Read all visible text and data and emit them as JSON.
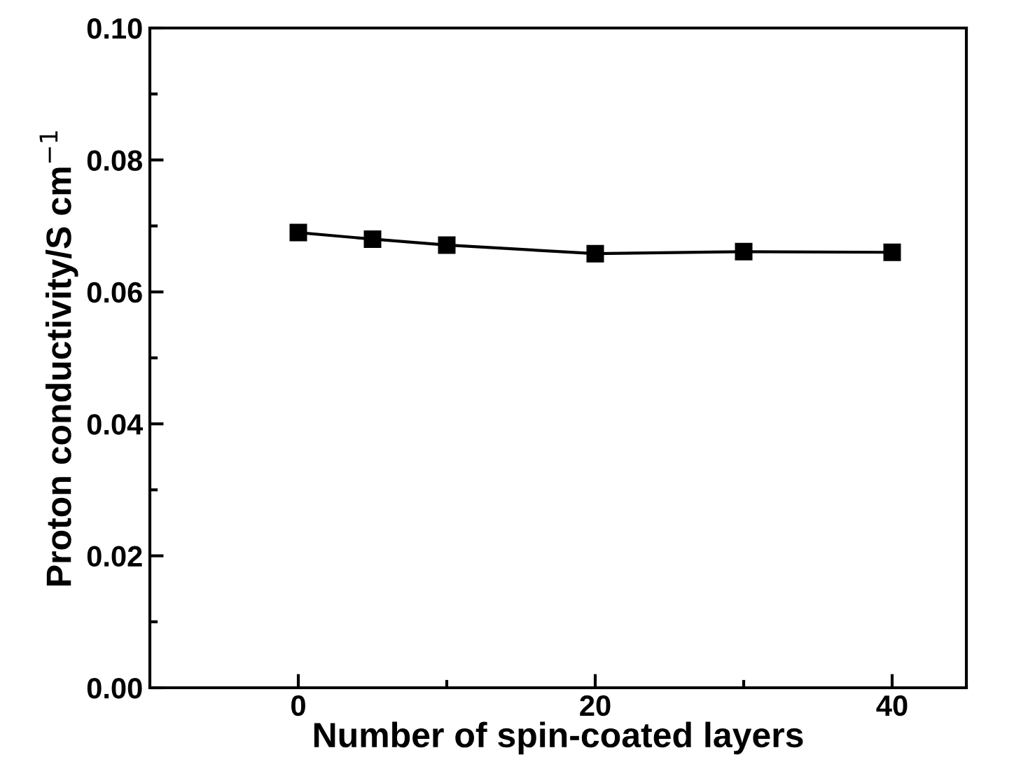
{
  "chart_data": {
    "type": "line",
    "xlabel": "Number of spin-coated layers",
    "ylabel": "Proton conductivity/S cm$^{−1}$",
    "x": [
      0,
      5,
      10,
      20,
      30,
      40
    ],
    "series": [
      {
        "color": "#000000",
        "values": [
          0.069,
          0.068,
          0.0671,
          0.0658,
          0.0661,
          0.066
        ]
      }
    ],
    "xlim": [
      -10,
      45
    ],
    "xticks": [
      0,
      {
        "value": 10,
        "label": null
      },
      20,
      {
        "value": 30,
        "label": null
      },
      40
    ],
    "ylim": [
      0,
      0.1
    ],
    "yticks": [
      "0.00",
      {
        "value": 0.01,
        "label": null
      },
      0.02,
      {
        "value": 0.03,
        "label": null
      },
      0.04,
      {
        "value": 0.05,
        "label": null
      },
      0.06,
      {
        "value": 0.07,
        "label": null
      },
      0.08,
      {
        "value": 0.09,
        "label": null
      },
      "0.10"
    ],
    "marker": "square",
    "line_style": "solid",
    "grid": false
  }
}
